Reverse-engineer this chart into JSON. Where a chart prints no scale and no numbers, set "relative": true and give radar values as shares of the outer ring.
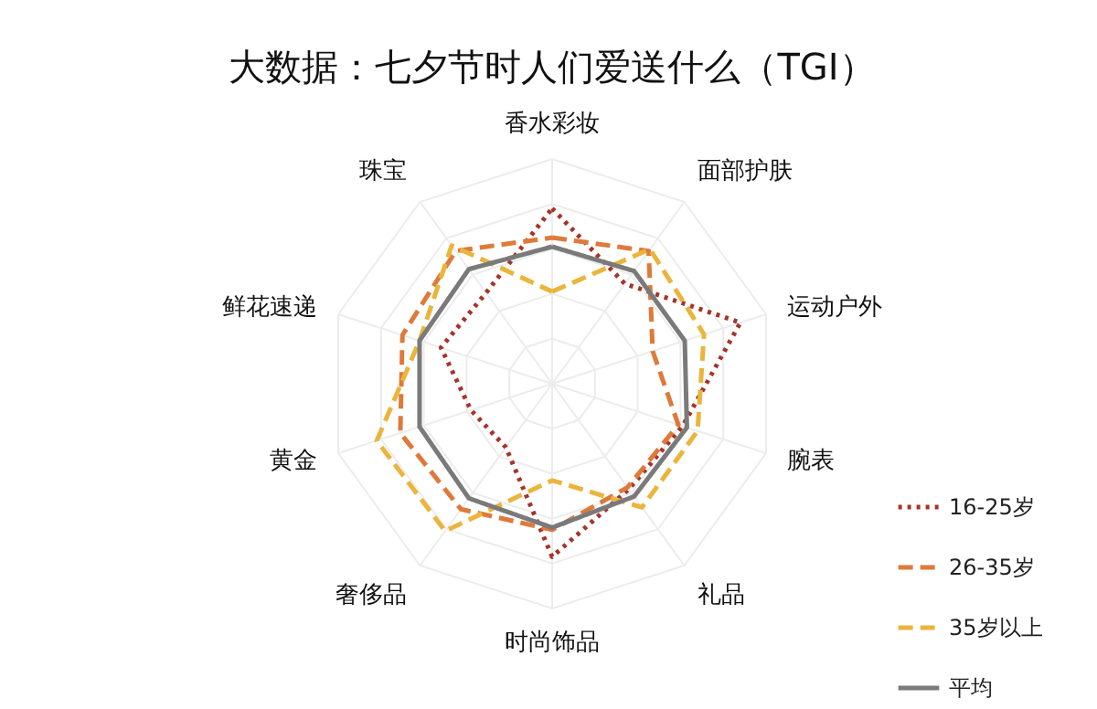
{
  "chart_data": {
    "type": "radar",
    "title": "大数据：七夕节时人们爱送什么（TGI）",
    "relative": true,
    "grid": true,
    "legend": "bottom right",
    "marker": "none",
    "categories": [
      "香水彩妆",
      "面部护肤",
      "运动户外",
      "腕表",
      "礼品",
      "时尚饰品",
      "奢侈品",
      "黄金",
      "鲜花速递",
      "珠宝"
    ],
    "series": [
      {
        "name": "16-25岁",
        "color": "#a5342a",
        "line_style": "dotted",
        "values": [
          0.78,
          0.55,
          0.88,
          0.61,
          0.58,
          0.77,
          0.35,
          0.38,
          0.52,
          0.5
        ]
      },
      {
        "name": "26-35岁",
        "color": "#de7a3a",
        "line_style": "dashed",
        "values": [
          0.65,
          0.73,
          0.47,
          0.59,
          0.57,
          0.65,
          0.69,
          0.71,
          0.7,
          0.73
        ]
      },
      {
        "name": "35岁以上",
        "color": "#eab53c",
        "line_style": "dashed",
        "values": [
          0.41,
          0.74,
          0.71,
          0.68,
          0.68,
          0.43,
          0.81,
          0.82,
          0.62,
          0.76
        ]
      },
      {
        "name": "平均",
        "color": "#7a7a7a",
        "line_style": "solid",
        "values": [
          0.61,
          0.62,
          0.62,
          0.63,
          0.62,
          0.64,
          0.63,
          0.62,
          0.62,
          0.63
        ]
      }
    ]
  }
}
